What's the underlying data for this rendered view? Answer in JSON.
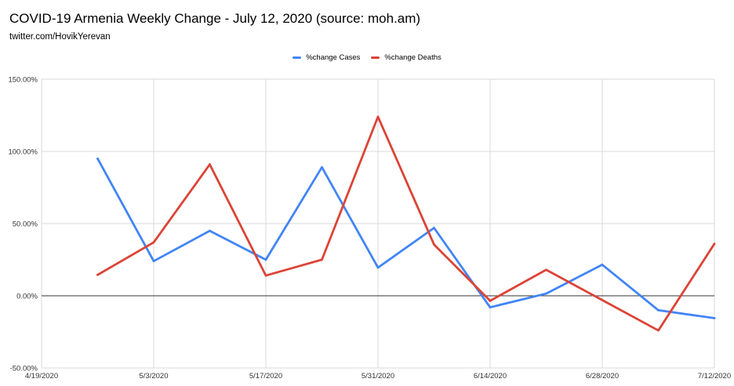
{
  "chart_data": {
    "type": "line",
    "title": "COVID-19 Armenia Weekly Change - July 12, 2020 (source: moh.am)",
    "subtitle": "twitter.com/HovikYerevan",
    "xlabel": "",
    "ylabel": "",
    "x_ticks": [
      "4/19/2020",
      "5/3/2020",
      "5/17/2020",
      "5/31/2020",
      "6/14/2020",
      "6/28/2020",
      "7/12/2020"
    ],
    "x": [
      "4/26/2020",
      "5/3/2020",
      "5/10/2020",
      "5/17/2020",
      "5/24/2020",
      "5/31/2020",
      "6/7/2020",
      "6/14/2020",
      "6/21/2020",
      "6/28/2020",
      "7/5/2020",
      "7/12/2020"
    ],
    "y_ticks": [
      "150.00%",
      "100.00%",
      "50.00%",
      "0.00%",
      "-50.00%"
    ],
    "ylim": [
      -50,
      150
    ],
    "grid": true,
    "legend_position": "top",
    "series": [
      {
        "name": "%change Cases",
        "color": "#4285f4",
        "values": [
          95,
          24,
          45,
          25,
          89,
          19.5,
          47,
          -8,
          1.5,
          21.5,
          -10,
          -15.5
        ]
      },
      {
        "name": "%change Deaths",
        "color": "#db4437",
        "values": [
          14.5,
          37,
          91,
          14,
          25,
          124,
          35.5,
          -3.5,
          18,
          -3,
          -24,
          36
        ]
      }
    ]
  }
}
